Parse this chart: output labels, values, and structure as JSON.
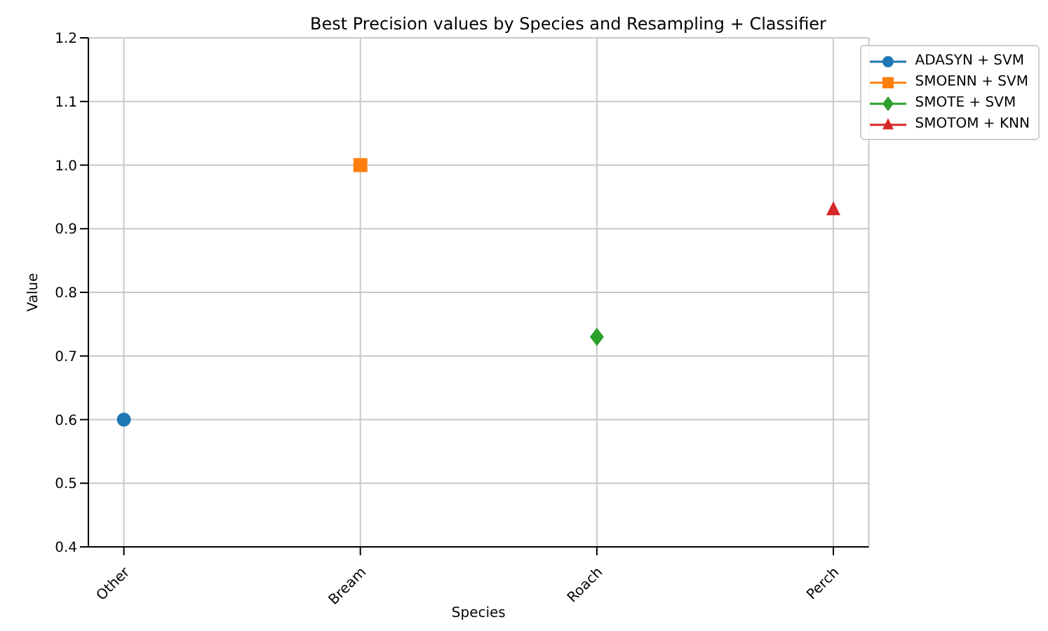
{
  "chart_data": {
    "type": "line",
    "title": "Best Precision values by Species and Resampling + Classifier",
    "xlabel": "Species",
    "ylabel": "Value",
    "categories": [
      "Other",
      "Bream",
      "Roach",
      "Perch"
    ],
    "ylim": [
      0.4,
      1.2
    ],
    "yticks": [
      {
        "value": 0.4,
        "label": "0.4"
      },
      {
        "value": 0.5,
        "label": "0.5"
      },
      {
        "value": 0.6,
        "label": "0.6"
      },
      {
        "value": 0.7,
        "label": "0.7"
      },
      {
        "value": 0.8,
        "label": "0.8"
      },
      {
        "value": 0.9,
        "label": "0.9"
      },
      {
        "value": 1.0,
        "label": "1.0"
      },
      {
        "value": 1.1,
        "label": "1.1"
      },
      {
        "value": 1.2,
        "label": "1.2"
      }
    ],
    "grid": true,
    "legend": "top right",
    "series": [
      {
        "name": "ADASYN + SVM",
        "color": "#1f77b4",
        "marker": "circle",
        "values": [
          0.6,
          null,
          null,
          null
        ]
      },
      {
        "name": "SMOENN + SVM",
        "color": "#ff7f0e",
        "marker": "square",
        "values": [
          null,
          1.0,
          null,
          null
        ]
      },
      {
        "name": "SMOTE + SVM",
        "color": "#2ca02c",
        "marker": "diamond",
        "values": [
          null,
          null,
          0.73,
          null
        ]
      },
      {
        "name": "SMOTOM + KNN",
        "color": "#d62728",
        "marker": "triangle",
        "values": [
          null,
          null,
          null,
          0.93
        ]
      }
    ]
  }
}
